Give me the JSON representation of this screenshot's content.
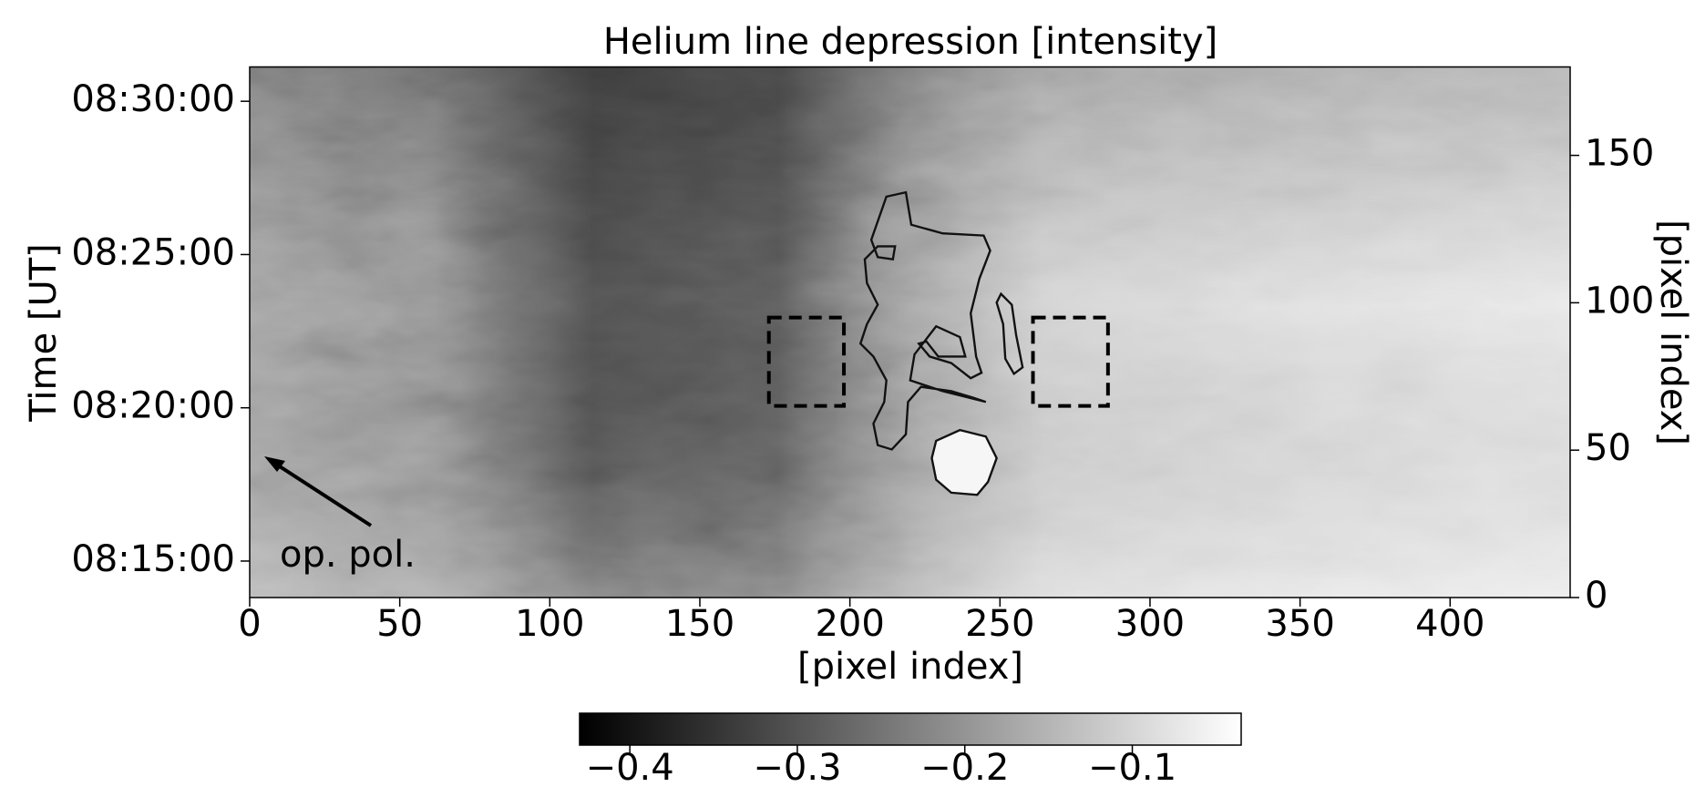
{
  "chart_data": {
    "type": "heatmap",
    "title": "Helium line depression [intensity]",
    "xlabel": "[pixel index]",
    "ylabel": "Time [UT]",
    "y2label": "[pixel index]",
    "xlim": [
      0,
      440
    ],
    "xticks": [
      0,
      50,
      100,
      150,
      200,
      250,
      300,
      350,
      400
    ],
    "ylim": [
      493.81,
      511.12
    ],
    "yticks": [
      {
        "value": 495,
        "label": "08:15:00"
      },
      {
        "value": 500,
        "label": "08:20:00"
      },
      {
        "value": 505,
        "label": "08:25:00"
      },
      {
        "value": 510,
        "label": "08:30:00"
      }
    ],
    "y2lim": [
      0,
      180
    ],
    "y2ticks": [
      0,
      50,
      100,
      150
    ],
    "colorbar": {
      "lim": [
        -0.43,
        -0.035
      ],
      "ticks": [
        {
          "value": -0.4,
          "label": "−0.4"
        },
        {
          "value": -0.3,
          "label": "−0.3"
        },
        {
          "value": -0.2,
          "label": "−0.2"
        },
        {
          "value": -0.1,
          "label": "−0.1"
        }
      ]
    },
    "boxes": [
      {
        "x": [
          173,
          198
        ],
        "y": [
          65,
          95
        ]
      },
      {
        "x": [
          261,
          286
        ],
        "y": [
          65,
          95
        ]
      }
    ],
    "annotation": "op. pol."
  }
}
